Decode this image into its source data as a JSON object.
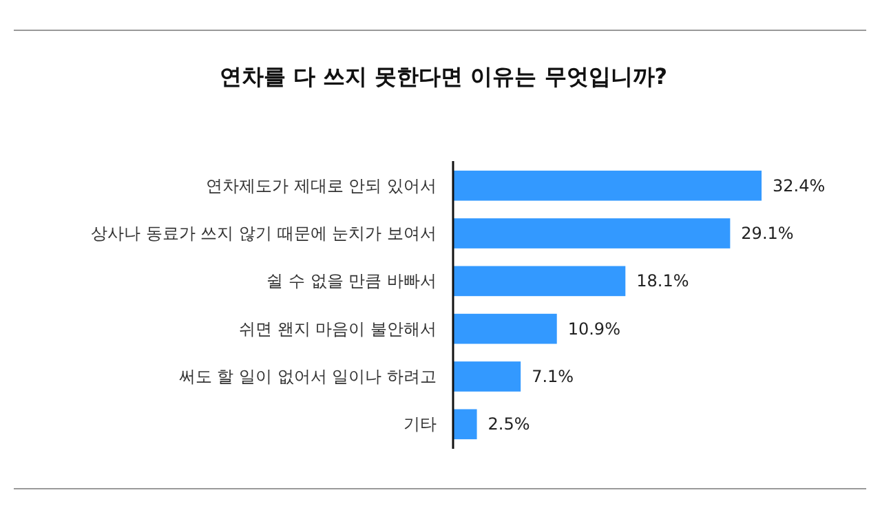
{
  "chart_data": {
    "type": "bar",
    "orientation": "horizontal",
    "title": "연차를 다 쓰지 못한다면 이유는 무엇입니까?",
    "categories": [
      "연차제도가 제대로 안되 있어서",
      "상사나 동료가 쓰지 않기 때문에 눈치가 보여서",
      "쉴 수 없을 만큼 바빠서",
      "쉬면 왠지 마음이 불안해서",
      "써도 할 일이 없어서 일이나 하려고",
      "기타"
    ],
    "values": [
      32.4,
      29.1,
      18.1,
      10.9,
      7.1,
      2.5
    ],
    "value_labels": [
      "32.4%",
      "29.1%",
      "18.1%",
      "10.9%",
      "7.1%",
      "2.5%"
    ],
    "color": "#3399ff"
  }
}
